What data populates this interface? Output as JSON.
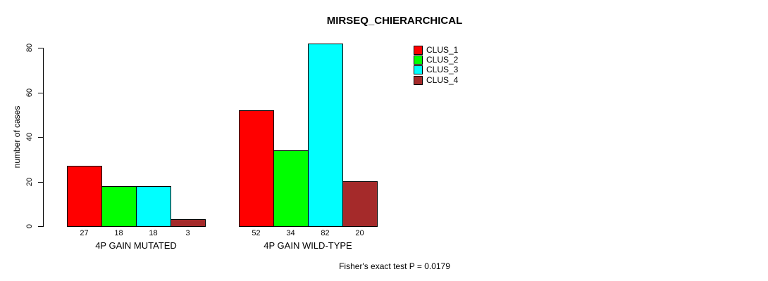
{
  "title": "MIRSEQ_CHIERARCHICAL",
  "footer": "Fisher's exact test P = 0.0179",
  "chart_data": {
    "type": "bar",
    "grouped": true,
    "title": "MIRSEQ_CHIERARCHICAL",
    "ylabel": "number of cases",
    "xlabel": "",
    "categories": [
      "4P GAIN MUTATED",
      "4P GAIN WILD-TYPE"
    ],
    "series": [
      {
        "name": "CLUS_1",
        "color": "#ff0000",
        "values": [
          27,
          52
        ]
      },
      {
        "name": "CLUS_2",
        "color": "#00ff00",
        "values": [
          18,
          34
        ]
      },
      {
        "name": "CLUS_3",
        "color": "#00ffff",
        "values": [
          18,
          82
        ]
      },
      {
        "name": "CLUS_4",
        "color": "#a52a2a",
        "values": [
          3,
          20
        ]
      }
    ],
    "ylim": [
      0,
      80
    ],
    "yticks": [
      0,
      20,
      40,
      60,
      80
    ],
    "bar_value_labels": [
      [
        "27",
        "18",
        "18",
        "3"
      ],
      [
        "52",
        "34",
        "82",
        "20"
      ]
    ],
    "grid": false,
    "legend_position": "top-right",
    "annotation": "Fisher's exact test P = 0.0179"
  }
}
